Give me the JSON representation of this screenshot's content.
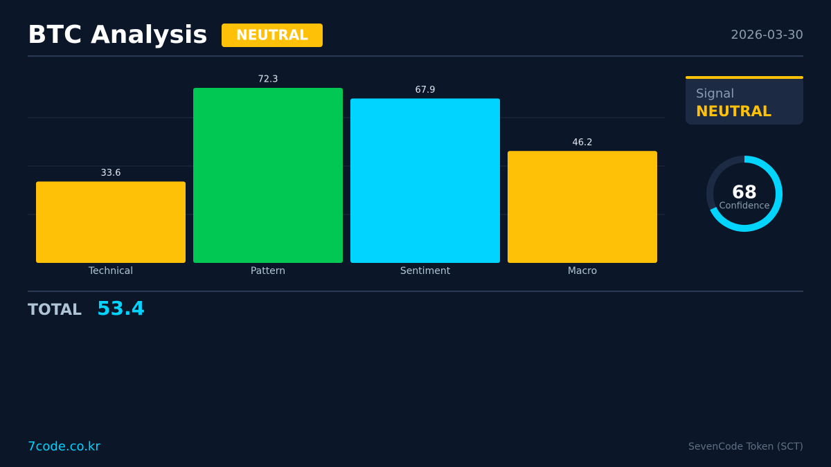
{
  "header": {
    "title": "BTC Analysis",
    "badge": "NEUTRAL",
    "date": "2026-03-30"
  },
  "chart_data": {
    "type": "bar",
    "categories": [
      "Technical",
      "Pattern",
      "Sentiment",
      "Macro"
    ],
    "values": [
      33.6,
      72.3,
      67.9,
      46.2
    ],
    "colors": [
      "#ffc107",
      "#00c853",
      "#00d4ff",
      "#ffc107"
    ],
    "ylim": [
      0,
      80
    ],
    "yticks": [
      20,
      40,
      60
    ],
    "grid": true
  },
  "signal": {
    "label": "Signal",
    "value": "NEUTRAL"
  },
  "gauge": {
    "value": 68,
    "label": "Confidence",
    "lim": [
      0,
      100
    ]
  },
  "total": {
    "label": "TOTAL",
    "value": 53.4
  },
  "footer": {
    "site": "7code.co.kr",
    "token": "SevenCode Token (SCT)"
  }
}
